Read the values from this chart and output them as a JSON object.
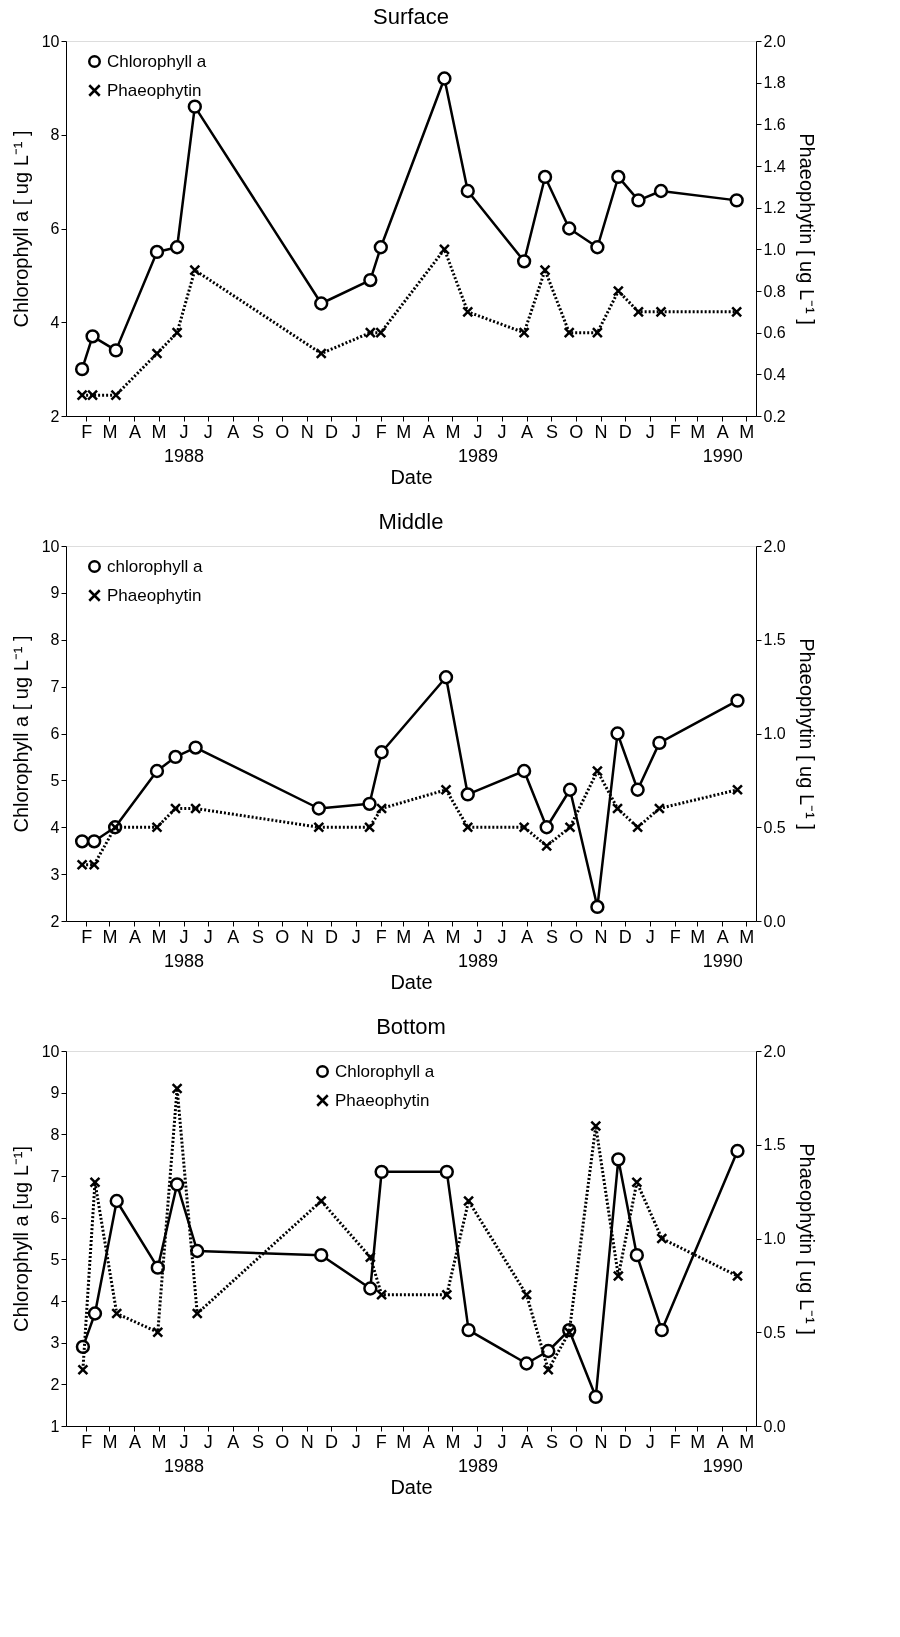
{
  "chart_data": [
    {
      "type": "line",
      "title": "Surface",
      "xlabel": "Date",
      "ylabel": "Chlorophyll a  [ ug L⁻¹ ]",
      "y2label": "Phaeophytin  [ ug L⁻¹ ]",
      "x": [
        "1988-01-27",
        "1988-02-09",
        "1988-03-09",
        "1988-04-29",
        "1988-05-24",
        "1988-06-15",
        "1988-11-19",
        "1989-01-19",
        "1989-02-01",
        "1989-04-21",
        "1989-05-20",
        "1989-07-29",
        "1989-08-24",
        "1989-09-23",
        "1989-10-28",
        "1989-11-23",
        "1989-12-18",
        "1990-01-15",
        "1990-04-19"
      ],
      "series": [
        {
          "name": "Chlorophyll a",
          "color": "#000000",
          "marker": "circle",
          "line_style": "solid",
          "values": [
            3.0,
            3.7,
            3.4,
            5.5,
            5.6,
            8.6,
            4.4,
            4.9,
            5.6,
            9.2,
            6.8,
            5.3,
            7.1,
            6.0,
            5.6,
            7.1,
            6.6,
            6.8,
            6.6
          ]
        },
        {
          "name": "Phaeophytin",
          "color": "#000000",
          "marker": "cross",
          "line_style": "dotted",
          "axis": "y2",
          "values": [
            0.3,
            0.3,
            0.3,
            0.5,
            0.6,
            0.9,
            0.5,
            0.6,
            0.6,
            1.0,
            0.7,
            0.6,
            0.9,
            0.6,
            0.6,
            0.8,
            0.7,
            0.7,
            0.7
          ]
        }
      ],
      "xlim": [
        "1988-01-07",
        "1990-05-13"
      ],
      "xticks": [
        {
          "value": "1988-02-01",
          "label": "F"
        },
        {
          "value": "1988-03-01",
          "label": "M"
        },
        {
          "value": "1988-04-01",
          "label": "A"
        },
        {
          "value": "1988-05-01",
          "label": "M"
        },
        {
          "value": "1988-06-01",
          "label": "J\n1988"
        },
        {
          "value": "1988-07-01",
          "label": "J"
        },
        {
          "value": "1988-08-01",
          "label": "A"
        },
        {
          "value": "1988-09-01",
          "label": "S"
        },
        {
          "value": "1988-10-01",
          "label": "O"
        },
        {
          "value": "1988-11-01",
          "label": "N"
        },
        {
          "value": "1988-12-01",
          "label": "D"
        },
        {
          "value": "1989-01-01",
          "label": "J"
        },
        {
          "value": "1989-02-01",
          "label": "F"
        },
        {
          "value": "1989-03-01",
          "label": "M"
        },
        {
          "value": "1989-04-01",
          "label": "A"
        },
        {
          "value": "1989-05-01",
          "label": "M"
        },
        {
          "value": "1989-06-01",
          "label": "J\n1989"
        },
        {
          "value": "1989-07-01",
          "label": "J"
        },
        {
          "value": "1989-08-01",
          "label": "A"
        },
        {
          "value": "1989-09-01",
          "label": "S"
        },
        {
          "value": "1989-10-01",
          "label": "O"
        },
        {
          "value": "1989-11-01",
          "label": "N"
        },
        {
          "value": "1989-12-01",
          "label": "D"
        },
        {
          "value": "1990-01-01",
          "label": "J"
        },
        {
          "value": "1990-02-01",
          "label": "F"
        },
        {
          "value": "1990-03-01",
          "label": "M"
        },
        {
          "value": "1990-04-01",
          "label": "A\n1990"
        },
        {
          "value": "1990-05-01",
          "label": "M"
        }
      ],
      "ylim": [
        2,
        10
      ],
      "yticks": [
        2,
        4,
        6,
        8,
        10
      ],
      "y2lim": [
        0.2,
        2.0
      ],
      "y2ticks": [
        0.2,
        0.4,
        0.6,
        0.8,
        {
          "value": 1.0,
          "label": "1.0"
        },
        1.2,
        1.4,
        1.6,
        1.8,
        {
          "value": 2.0,
          "label": "2.0"
        }
      ],
      "legend": "top left"
    },
    {
      "type": "line",
      "title": "Middle",
      "xlabel": "Date",
      "ylabel": "Chlorophyll a  [ ug L⁻¹ ]",
      "y2label": "Phaeophytin  [ ug L⁻¹ ]",
      "x": [
        "1988-01-27",
        "1988-02-11",
        "1988-03-08",
        "1988-04-29",
        "1988-05-22",
        "1988-06-16",
        "1988-11-16",
        "1989-01-18",
        "1989-02-02",
        "1989-04-23",
        "1989-05-20",
        "1989-07-29",
        "1989-08-26",
        "1989-09-24",
        "1989-10-28",
        "1989-11-22",
        "1989-12-17",
        "1990-01-13",
        "1990-04-20"
      ],
      "series": [
        {
          "name": "chlorophyll a",
          "color": "#000000",
          "marker": "circle",
          "line_style": "solid",
          "values": [
            3.7,
            3.7,
            4.0,
            5.2,
            5.5,
            5.7,
            4.4,
            4.5,
            5.6,
            7.2,
            4.7,
            5.2,
            4.0,
            4.8,
            2.3,
            6.0,
            4.8,
            5.8,
            6.7
          ]
        },
        {
          "name": "Phaeophytin",
          "color": "#000000",
          "marker": "cross",
          "line_style": "dotted",
          "axis": "y2",
          "values": [
            0.3,
            0.3,
            0.5,
            0.5,
            0.6,
            0.6,
            0.5,
            0.5,
            0.6,
            0.7,
            0.5,
            0.5,
            0.4,
            0.5,
            0.8,
            0.6,
            0.5,
            0.6,
            0.7
          ]
        }
      ],
      "xlim": [
        "1988-01-07",
        "1990-05-13"
      ],
      "xticks": [
        {
          "value": "1988-02-01",
          "label": "F"
        },
        {
          "value": "1988-03-01",
          "label": "M"
        },
        {
          "value": "1988-04-01",
          "label": "A"
        },
        {
          "value": "1988-05-01",
          "label": "M"
        },
        {
          "value": "1988-06-01",
          "label": "J\n1988"
        },
        {
          "value": "1988-07-01",
          "label": "J"
        },
        {
          "value": "1988-08-01",
          "label": "A"
        },
        {
          "value": "1988-09-01",
          "label": "S"
        },
        {
          "value": "1988-10-01",
          "label": "O"
        },
        {
          "value": "1988-11-01",
          "label": "N"
        },
        {
          "value": "1988-12-01",
          "label": "D"
        },
        {
          "value": "1989-01-01",
          "label": "J"
        },
        {
          "value": "1989-02-01",
          "label": "F"
        },
        {
          "value": "1989-03-01",
          "label": "M"
        },
        {
          "value": "1989-04-01",
          "label": "A"
        },
        {
          "value": "1989-05-01",
          "label": "M"
        },
        {
          "value": "1989-06-01",
          "label": "J\n1989"
        },
        {
          "value": "1989-07-01",
          "label": "J"
        },
        {
          "value": "1989-08-01",
          "label": "A"
        },
        {
          "value": "1989-09-01",
          "label": "S"
        },
        {
          "value": "1989-10-01",
          "label": "O"
        },
        {
          "value": "1989-11-01",
          "label": "N"
        },
        {
          "value": "1989-12-01",
          "label": "D"
        },
        {
          "value": "1990-01-01",
          "label": "J"
        },
        {
          "value": "1990-02-01",
          "label": "F"
        },
        {
          "value": "1990-03-01",
          "label": "M"
        },
        {
          "value": "1990-04-01",
          "label": "A\n1990"
        },
        {
          "value": "1990-05-01",
          "label": "M"
        }
      ],
      "ylim": [
        2,
        10
      ],
      "yticks": [
        2,
        3,
        4,
        5,
        6,
        7,
        8,
        9,
        10
      ],
      "y2lim": [
        0.0,
        2.0
      ],
      "y2ticks": [
        {
          "value": 0.0,
          "label": "0.0"
        },
        0.5,
        {
          "value": 1.0,
          "label": "1.0"
        },
        1.5,
        {
          "value": 2.0,
          "label": "2.0"
        }
      ],
      "legend": "top left"
    },
    {
      "type": "line",
      "title": "Bottom",
      "xlabel": "Date",
      "ylabel": "Chlorophyll a  [ug L⁻¹]",
      "y2label": "Phaeophytin  [ ug L⁻¹ ]",
      "x": [
        "1988-01-28",
        "1988-02-12",
        "1988-03-10",
        "1988-04-30",
        "1988-05-24",
        "1988-06-18",
        "1988-11-19",
        "1989-01-19",
        "1989-02-02",
        "1989-04-24",
        "1989-05-21",
        "1989-08-01",
        "1989-08-28",
        "1989-09-23",
        "1989-10-26",
        "1989-11-23",
        "1989-12-16",
        "1990-01-16",
        "1990-04-20"
      ],
      "series": [
        {
          "name": "Chlorophyll a",
          "color": "#000000",
          "marker": "circle",
          "line_style": "solid",
          "values": [
            2.9,
            3.7,
            6.4,
            4.8,
            6.8,
            5.2,
            5.1,
            4.3,
            7.1,
            7.1,
            3.3,
            2.5,
            2.8,
            3.3,
            1.7,
            7.4,
            5.1,
            3.3,
            7.6
          ]
        },
        {
          "name": "Phaeophytin",
          "color": "#000000",
          "marker": "cross",
          "line_style": "dotted",
          "axis": "y2",
          "values": [
            0.3,
            1.3,
            0.6,
            0.5,
            1.8,
            0.6,
            1.2,
            0.9,
            0.7,
            0.7,
            1.2,
            0.7,
            0.3,
            0.5,
            1.6,
            0.8,
            1.3,
            1.0,
            0.8
          ]
        }
      ],
      "xlim": [
        "1988-01-07",
        "1990-05-13"
      ],
      "xticks": [
        {
          "value": "1988-02-01",
          "label": "F"
        },
        {
          "value": "1988-03-01",
          "label": "M"
        },
        {
          "value": "1988-04-01",
          "label": "A"
        },
        {
          "value": "1988-05-01",
          "label": "M"
        },
        {
          "value": "1988-06-01",
          "label": "J\n1988"
        },
        {
          "value": "1988-07-01",
          "label": "J"
        },
        {
          "value": "1988-08-01",
          "label": "A"
        },
        {
          "value": "1988-09-01",
          "label": "S"
        },
        {
          "value": "1988-10-01",
          "label": "O"
        },
        {
          "value": "1988-11-01",
          "label": "N"
        },
        {
          "value": "1988-12-01",
          "label": "D"
        },
        {
          "value": "1989-01-01",
          "label": "J"
        },
        {
          "value": "1989-02-01",
          "label": "F"
        },
        {
          "value": "1989-03-01",
          "label": "M"
        },
        {
          "value": "1989-04-01",
          "label": "A"
        },
        {
          "value": "1989-05-01",
          "label": "M"
        },
        {
          "value": "1989-06-01",
          "label": "J\n1989"
        },
        {
          "value": "1989-07-01",
          "label": "J"
        },
        {
          "value": "1989-08-01",
          "label": "A"
        },
        {
          "value": "1989-09-01",
          "label": "S"
        },
        {
          "value": "1989-10-01",
          "label": "O"
        },
        {
          "value": "1989-11-01",
          "label": "N"
        },
        {
          "value": "1989-12-01",
          "label": "D"
        },
        {
          "value": "1990-01-01",
          "label": "J"
        },
        {
          "value": "1990-02-01",
          "label": "F"
        },
        {
          "value": "1990-03-01",
          "label": "M"
        },
        {
          "value": "1990-04-01",
          "label": "A\n1990"
        },
        {
          "value": "1990-05-01",
          "label": "M"
        }
      ],
      "ylim": [
        1,
        10
      ],
      "yticks": [
        1,
        2,
        3,
        4,
        5,
        6,
        7,
        8,
        9,
        10
      ],
      "y2lim": [
        0.0,
        2.0
      ],
      "y2ticks": [
        {
          "value": 0.0,
          "label": "0.0"
        },
        0.5,
        {
          "value": 1.0,
          "label": "1.0"
        },
        1.5,
        {
          "value": 2.0,
          "label": "2.0"
        }
      ],
      "legend": "top"
    }
  ]
}
